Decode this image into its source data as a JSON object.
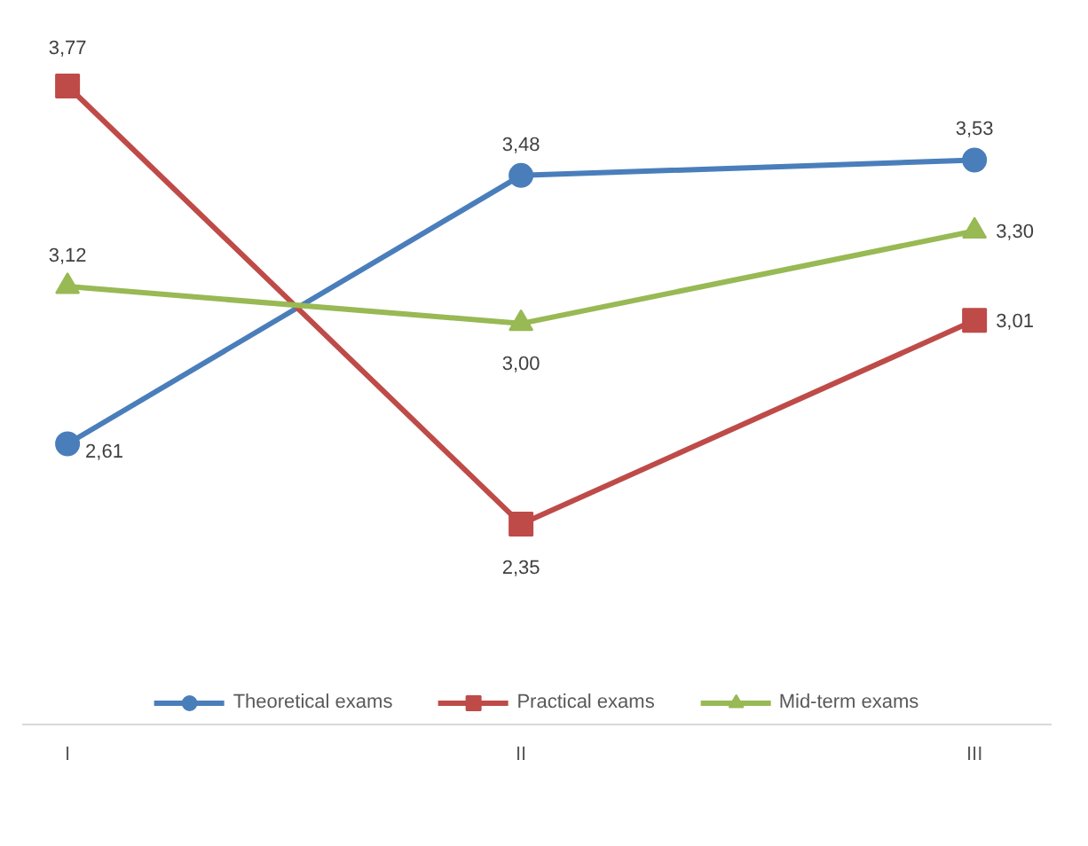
{
  "chart_data": {
    "type": "line",
    "categories": [
      "I",
      "II",
      "III"
    ],
    "legend": "bottom",
    "grid": false,
    "tick_labels": "x",
    "series": [
      {
        "name": "Theoretical exams",
        "color": "#4a7ebb",
        "marker": "circle",
        "values": [
          2.61,
          3.48,
          3.53
        ],
        "value_labels": [
          "2,61",
          "3,48",
          "3,53"
        ]
      },
      {
        "name": "Practical exams",
        "color": "#be4b48",
        "marker": "square",
        "values": [
          3.77,
          2.35,
          3.01
        ],
        "value_labels": [
          "3,77",
          "2,35",
          "3,01"
        ]
      },
      {
        "name": "Mid-term exams",
        "color": "#98b954",
        "marker": "triangle",
        "values": [
          3.12,
          3.0,
          3.3
        ],
        "value_labels": [
          "3,12",
          "3,00",
          "3,30"
        ]
      }
    ]
  }
}
